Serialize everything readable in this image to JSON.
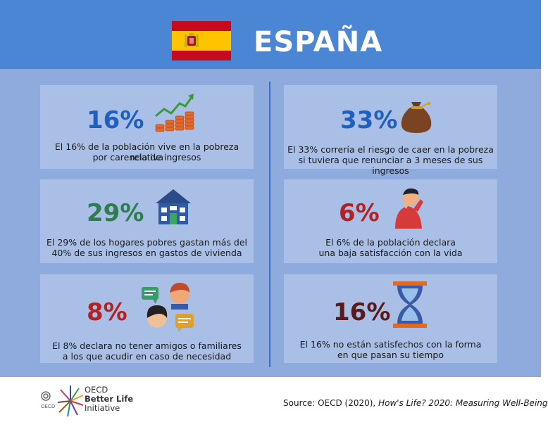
{
  "header": {
    "country": "ESPAÑA",
    "flag_colors": {
      "red": "#c60b1e",
      "yellow": "#ffc400"
    }
  },
  "panels": [
    {
      "id": "poverty",
      "value": "16%",
      "color": "#1f5fbf",
      "icon": "growth-chart-coins-icon",
      "line1": "El 16% de la población vive en la pobreza relativa",
      "line2": "por carencia de ingresos"
    },
    {
      "id": "risk",
      "value": "33%",
      "color": "#1f5fbf",
      "icon": "money-bag-icon",
      "line1": "El 33% correría el riesgo de caer en la pobreza",
      "line2": "si tuviera que renunciar a 3 meses de sus ingresos"
    },
    {
      "id": "housing",
      "value": "29%",
      "color": "#2e7d4f",
      "icon": "house-icon",
      "line1": "El 29% de los hogares pobres gastan más del",
      "line2": "40% de sus ingresos en gastos de vivienda"
    },
    {
      "id": "satisfaction",
      "value": "6%",
      "color": "#b22222",
      "icon": "distressed-person-icon",
      "line1": "El 6% de la población declara",
      "line2": "una baja satisfacción con la vida"
    },
    {
      "id": "friends",
      "value": "8%",
      "color": "#b22222",
      "icon": "people-chat-icon",
      "line1": "El 8% declara no tener amigos o familiares",
      "line2": "a los que acudir en caso de necesidad"
    },
    {
      "id": "time",
      "value": "16%",
      "color": "#5a1a1a",
      "icon": "hourglass-icon",
      "line1": "El 16% no están satisfechos con la forma",
      "line2": "en que pasan su tiempo"
    }
  ],
  "footer": {
    "logo_line1": "OECD",
    "logo_line2": "Better Life",
    "logo_line3": "Initiative",
    "logo_small": "OECD",
    "source_prefix": "Source: OECD (2020), ",
    "source_title": "How's Life? 2020: Measuring Well-Being"
  }
}
